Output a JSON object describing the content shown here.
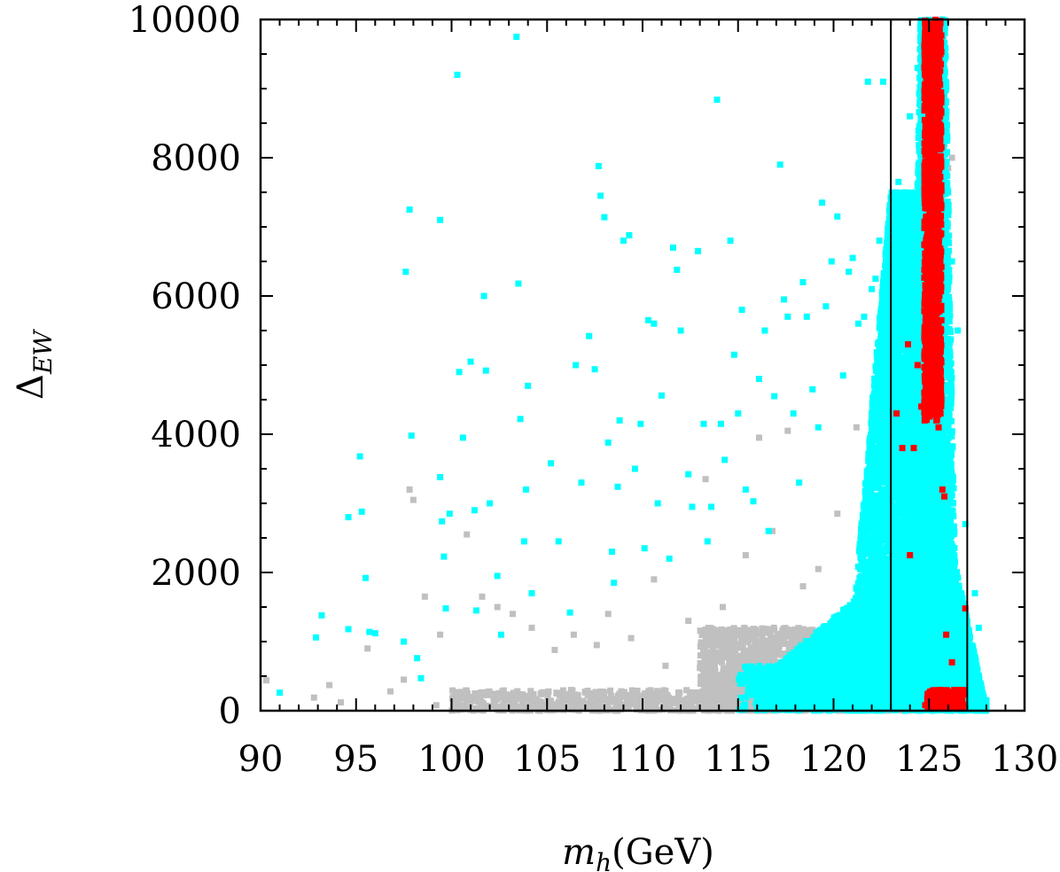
{
  "chart_data": {
    "type": "scatter",
    "xlabel_main": "m",
    "xlabel_sub": "h",
    "xlabel_unit": "(GeV)",
    "ylabel_main": "Δ",
    "ylabel_sub": "EW",
    "xlim": [
      90,
      130
    ],
    "ylim": [
      0,
      10000
    ],
    "x_ticks": [
      90,
      95,
      100,
      105,
      110,
      115,
      120,
      125,
      130
    ],
    "y_ticks": [
      0,
      2000,
      4000,
      6000,
      8000,
      10000
    ],
    "vertical_lines": [
      123,
      127
    ],
    "grid": false,
    "series": [
      {
        "color": "#c0c0c0",
        "points": [
          [
            90.3,
            440
          ],
          [
            92.8,
            190
          ],
          [
            93.6,
            370
          ],
          [
            94.2,
            120
          ],
          [
            95.6,
            900
          ],
          [
            96.8,
            280
          ],
          [
            97.5,
            450
          ],
          [
            97.8,
            3200
          ],
          [
            98.0,
            3050
          ],
          [
            98.6,
            1650
          ],
          [
            99.4,
            1100
          ],
          [
            100.8,
            2550
          ],
          [
            101.6,
            1650
          ],
          [
            102.4,
            1500
          ],
          [
            103.2,
            1400
          ],
          [
            104.2,
            1200
          ],
          [
            105.4,
            880
          ],
          [
            106.4,
            1100
          ],
          [
            107.6,
            950
          ],
          [
            108.2,
            1400
          ],
          [
            109.4,
            1050
          ],
          [
            110.6,
            1900
          ],
          [
            111.2,
            650
          ],
          [
            112.4,
            1300
          ],
          [
            113.3,
            3350
          ],
          [
            114.2,
            1500
          ],
          [
            115.4,
            2250
          ],
          [
            116.1,
            3950
          ],
          [
            116.8,
            2600
          ],
          [
            117.6,
            4050
          ],
          [
            118.4,
            1800
          ],
          [
            119.2,
            2050
          ],
          [
            120.2,
            2850
          ],
          [
            121.2,
            4100
          ],
          [
            122.2,
            1350
          ],
          [
            122.6,
            3950
          ],
          [
            122.8,
            5400
          ],
          [
            123.1,
            6400
          ],
          [
            123.3,
            6650
          ],
          [
            123.6,
            7050
          ],
          [
            124.2,
            7450
          ],
          [
            125.4,
            7600
          ],
          [
            126.0,
            7850
          ],
          [
            126.2,
            8000
          ],
          [
            125.9,
            300
          ],
          [
            126.4,
            450
          ],
          [
            126.8,
            200
          ],
          [
            127.4,
            150
          ],
          [
            127.8,
            120
          ],
          [
            99.2,
            80
          ],
          [
            101.4,
            130
          ],
          [
            103.6,
            60
          ],
          [
            106.2,
            90
          ],
          [
            108.8,
            140
          ],
          [
            111.4,
            60
          ],
          [
            113.8,
            110
          ],
          [
            115.6,
            80
          ],
          [
            117.2,
            60
          ],
          [
            119.4,
            100
          ]
        ]
      },
      {
        "color": "#00ffff",
        "points": [
          [
            91.0,
            260
          ],
          [
            92.9,
            1060
          ],
          [
            93.2,
            1380
          ],
          [
            94.6,
            2800
          ],
          [
            94.6,
            1180
          ],
          [
            95.2,
            3680
          ],
          [
            95.3,
            2880
          ],
          [
            95.5,
            1920
          ],
          [
            95.7,
            1140
          ],
          [
            96.0,
            1120
          ],
          [
            97.5,
            1000
          ],
          [
            97.6,
            6350
          ],
          [
            97.8,
            7250
          ],
          [
            97.9,
            3980
          ],
          [
            98.2,
            760
          ],
          [
            98.4,
            470
          ],
          [
            99.4,
            7100
          ],
          [
            99.4,
            3380
          ],
          [
            99.5,
            2740
          ],
          [
            99.6,
            2230
          ],
          [
            99.7,
            1480
          ],
          [
            99.9,
            2850
          ],
          [
            100.3,
            9200
          ],
          [
            100.4,
            4900
          ],
          [
            100.6,
            3950
          ],
          [
            101.0,
            5050
          ],
          [
            101.2,
            2900
          ],
          [
            101.3,
            1450
          ],
          [
            101.7,
            6000
          ],
          [
            101.8,
            4920
          ],
          [
            102.0,
            3000
          ],
          [
            102.4,
            1950
          ],
          [
            102.6,
            1100
          ],
          [
            103.4,
            9750
          ],
          [
            103.5,
            6180
          ],
          [
            103.6,
            4220
          ],
          [
            103.8,
            2450
          ],
          [
            103.9,
            3200
          ],
          [
            104.0,
            4700
          ],
          [
            104.2,
            1700
          ],
          [
            105.2,
            3580
          ],
          [
            105.6,
            2450
          ],
          [
            106.2,
            1420
          ],
          [
            106.5,
            5000
          ],
          [
            106.8,
            3300
          ],
          [
            107.2,
            5420
          ],
          [
            107.5,
            4940
          ],
          [
            107.7,
            7880
          ],
          [
            107.8,
            7450
          ],
          [
            108.0,
            7140
          ],
          [
            108.2,
            3880
          ],
          [
            108.4,
            2300
          ],
          [
            108.5,
            1850
          ],
          [
            108.7,
            3240
          ],
          [
            108.8,
            4200
          ],
          [
            109.0,
            6800
          ],
          [
            109.3,
            6880
          ],
          [
            109.6,
            3500
          ],
          [
            109.9,
            4150
          ],
          [
            110.1,
            2350
          ],
          [
            110.3,
            5650
          ],
          [
            110.6,
            5600
          ],
          [
            110.8,
            3000
          ],
          [
            111.0,
            4560
          ],
          [
            111.4,
            2200
          ],
          [
            111.6,
            6700
          ],
          [
            111.8,
            6380
          ],
          [
            112.0,
            5500
          ],
          [
            112.4,
            3420
          ],
          [
            112.6,
            2950
          ],
          [
            112.9,
            6650
          ],
          [
            113.2,
            4150
          ],
          [
            113.4,
            2450
          ],
          [
            113.6,
            2950
          ],
          [
            113.9,
            8840
          ],
          [
            114.1,
            4150
          ],
          [
            114.3,
            3630
          ],
          [
            114.6,
            6800
          ],
          [
            114.8,
            5150
          ],
          [
            115.0,
            4300
          ],
          [
            115.2,
            5800
          ],
          [
            115.4,
            3200
          ],
          [
            115.8,
            3030
          ],
          [
            116.1,
            4800
          ],
          [
            116.4,
            5500
          ],
          [
            116.6,
            2600
          ],
          [
            116.9,
            4550
          ],
          [
            117.2,
            7900
          ],
          [
            117.4,
            5950
          ],
          [
            117.6,
            5700
          ],
          [
            117.9,
            4300
          ],
          [
            118.2,
            3300
          ],
          [
            118.4,
            6200
          ],
          [
            118.6,
            5700
          ],
          [
            118.9,
            4650
          ],
          [
            119.2,
            4100
          ],
          [
            119.4,
            7350
          ],
          [
            119.6,
            5850
          ],
          [
            119.9,
            6500
          ],
          [
            120.2,
            7150
          ],
          [
            120.5,
            4850
          ],
          [
            120.8,
            6350
          ],
          [
            121.0,
            6550
          ],
          [
            121.3,
            5600
          ],
          [
            121.6,
            5700
          ],
          [
            121.8,
            9100
          ],
          [
            122.0,
            6100
          ],
          [
            122.2,
            6250
          ],
          [
            122.4,
            6800
          ],
          [
            122.6,
            9100
          ],
          [
            123.4,
            7650
          ],
          [
            123.8,
            7150
          ],
          [
            124.0,
            8600
          ],
          [
            124.4,
            9300
          ],
          [
            124.6,
            9800
          ],
          [
            124.9,
            9950
          ],
          [
            125.0,
            9750
          ],
          [
            125.2,
            9500
          ],
          [
            125.5,
            8900
          ],
          [
            125.8,
            8200
          ],
          [
            126.0,
            7500
          ],
          [
            126.2,
            6500
          ],
          [
            126.5,
            5500
          ],
          [
            126.9,
            2700
          ],
          [
            127.4,
            1700
          ],
          [
            127.6,
            1200
          ],
          [
            127.2,
            500
          ],
          [
            127.0,
            900
          ],
          [
            126.8,
            200
          ]
        ]
      },
      {
        "color": "#ff0000",
        "points": [
          [
            123.3,
            4300
          ],
          [
            123.6,
            3800
          ],
          [
            123.9,
            5300
          ],
          [
            124.0,
            2250
          ],
          [
            124.2,
            3800
          ],
          [
            124.4,
            5000
          ],
          [
            124.6,
            4400
          ],
          [
            124.8,
            9200
          ],
          [
            124.9,
            8400
          ],
          [
            125.0,
            9800
          ],
          [
            125.1,
            7000
          ],
          [
            125.2,
            6300
          ],
          [
            125.3,
            5600
          ],
          [
            125.4,
            4800
          ],
          [
            125.5,
            4100
          ],
          [
            125.6,
            4600
          ],
          [
            125.7,
            3200
          ],
          [
            125.8,
            3100
          ],
          [
            125.9,
            1100
          ],
          [
            126.2,
            700
          ],
          [
            126.4,
            300
          ],
          [
            126.6,
            140
          ],
          [
            126.9,
            1480
          ],
          [
            124.8,
            80
          ],
          [
            125.0,
            200
          ],
          [
            125.4,
            120
          ],
          [
            125.9,
            180
          ],
          [
            126.3,
            100
          ]
        ]
      }
    ],
    "clusters": [
      {
        "series": 0,
        "kind": "band",
        "x": [
          113,
          126
        ],
        "y": [
          0,
          1200
        ],
        "n": 2600
      },
      {
        "series": 0,
        "kind": "band",
        "x": [
          100,
          113
        ],
        "y": [
          0,
          300
        ],
        "n": 500
      },
      {
        "series": 1,
        "kind": "density",
        "x": [
          115,
          128
        ],
        "y": [
          0,
          2600
        ],
        "n": 17000
      },
      {
        "series": 1,
        "kind": "band",
        "x": [
          121,
          127.4
        ],
        "y": [
          0,
          7500
        ],
        "n": 6500
      },
      {
        "series": 1,
        "kind": "band",
        "x": [
          123.6,
          126.6
        ],
        "y": [
          0,
          10000
        ],
        "n": 3500
      },
      {
        "series": 2,
        "kind": "band",
        "x": [
          124.7,
          125.8
        ],
        "y": [
          4200,
          10000
        ],
        "n": 1300
      },
      {
        "series": 2,
        "kind": "band",
        "x": [
          124.9,
          126.8
        ],
        "y": [
          40,
          300
        ],
        "n": 280
      }
    ]
  }
}
